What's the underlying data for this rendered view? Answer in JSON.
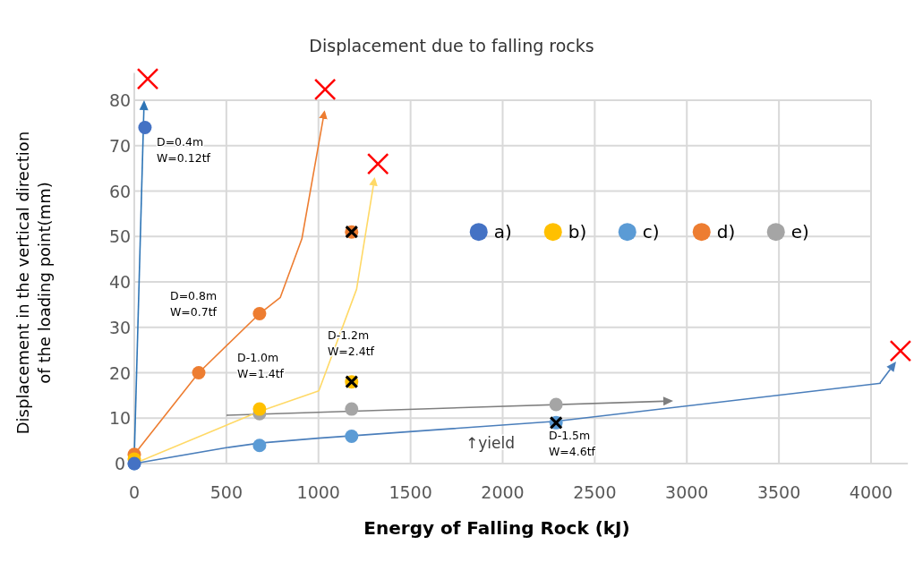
{
  "chart_data": {
    "type": "scatter",
    "title": "Displacement due to falling rocks",
    "xlabel": "Energy of Falling Rock (kJ)",
    "ylabel": "Displacement in the vertical direction\nof the loading point(mm)",
    "xlim": [
      0,
      4200
    ],
    "ylim": [
      0,
      86
    ],
    "xticks": [
      0,
      500,
      1000,
      1500,
      2000,
      2500,
      3000,
      3500,
      4000
    ],
    "yticks": [
      0,
      10,
      20,
      30,
      40,
      50,
      60,
      70,
      80
    ],
    "grid": true,
    "legend": "top right",
    "series": [
      {
        "type": "line",
        "marker": "none",
        "color": "#ed7d31",
        "x": [
          0,
          350,
          680,
          793,
          910,
          1032
        ],
        "values": [
          2,
          20,
          33,
          36.6,
          49.5,
          77.4
        ]
      },
      {
        "type": "line",
        "marker": "none",
        "color": "#ffd966",
        "x": [
          0,
          680,
          1002,
          1207,
          1304
        ],
        "values": [
          0,
          11.5,
          16,
          38.4,
          62.7
        ]
      },
      {
        "type": "line",
        "marker": "none",
        "color": "#4a7ebb",
        "x": [
          0,
          500,
          680,
          1000,
          2290,
          4053
        ],
        "values": [
          0,
          3.5,
          4.5,
          5.6,
          9.3,
          17.7
        ]
      },
      {
        "name": "a)",
        "marker": "circle",
        "color": "#4472c4",
        "x": [
          0,
          58
        ],
        "values": [
          0,
          74
        ]
      },
      {
        "name": "b)",
        "marker": "circle",
        "color": "#ffc000",
        "x": [
          0,
          680,
          1180
        ],
        "values": [
          1,
          12,
          18
        ]
      },
      {
        "name": "c)",
        "marker": "circle",
        "color": "#5b9bd5",
        "x": [
          0,
          680,
          1180,
          2290
        ],
        "values": [
          0,
          4,
          6,
          9
        ]
      },
      {
        "name": "d)",
        "marker": "circle",
        "color": "#ed7d31",
        "x": [
          0,
          350,
          680,
          1180
        ],
        "values": [
          2,
          20,
          33,
          51
        ]
      },
      {
        "name": "e)",
        "marker": "circle",
        "color": "#a5a5a5",
        "x": [
          680,
          1180,
          2290
        ],
        "values": [
          11,
          12,
          13
        ]
      },
      {
        "marker": "cross",
        "color": "#000000",
        "x": [
          1180,
          1180,
          2290
        ],
        "values": [
          51,
          18,
          9
        ]
      },
      {
        "marker": "cross",
        "color": "#ff0000",
        "x": [
          73,
          1036,
          1323,
          4160
        ],
        "values": [
          84.7,
          82.4,
          66,
          24.8
        ]
      }
    ],
    "annotations": [
      "D=0.4m\nW=0.12tf",
      "D=0.8m\nW=0.7tf",
      "D-1.0m\nW=1.4tf",
      "D-1.2m\nW=2.4tf",
      "D-1.5m\nW=4.6tf",
      "↑yield"
    ]
  }
}
